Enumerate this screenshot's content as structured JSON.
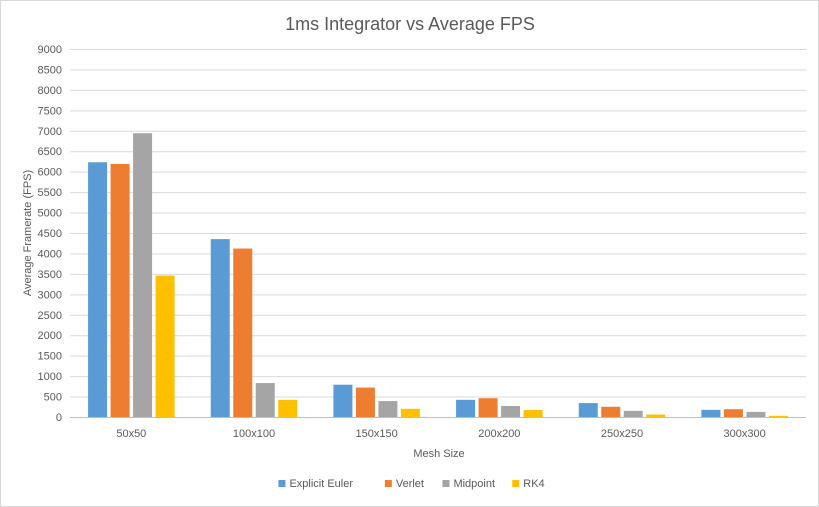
{
  "chart_data": {
    "type": "bar",
    "title": "1ms Integrator vs Average FPS",
    "xlabel": "Mesh Size",
    "ylabel": "Average Framerate (FPS)",
    "ylim": [
      0,
      9000
    ],
    "yticks": [
      0,
      500,
      1000,
      1500,
      2000,
      2500,
      3000,
      3500,
      4000,
      4500,
      5000,
      5500,
      6000,
      6500,
      7000,
      7500,
      8000,
      8500,
      9000
    ],
    "grid": true,
    "legend_position": "bottom",
    "categories": [
      "50x50",
      "100x100",
      "150x150",
      "200x200",
      "250x250",
      "300x300"
    ],
    "series": [
      {
        "name": "Explicit Euler",
        "color": "#5b9bd5",
        "values": [
          6230,
          4350,
          790,
          420,
          340,
          175
        ]
      },
      {
        "name": "Verlet",
        "color": "#ed7d31",
        "values": [
          6190,
          4120,
          720,
          460,
          250,
          190
        ]
      },
      {
        "name": "Midpoint",
        "color": "#a5a5a5",
        "values": [
          6940,
          830,
          390,
          270,
          150,
          125
        ]
      },
      {
        "name": "RK4",
        "color": "#ffc000",
        "values": [
          3460,
          420,
          200,
          170,
          60,
          30
        ]
      }
    ]
  }
}
